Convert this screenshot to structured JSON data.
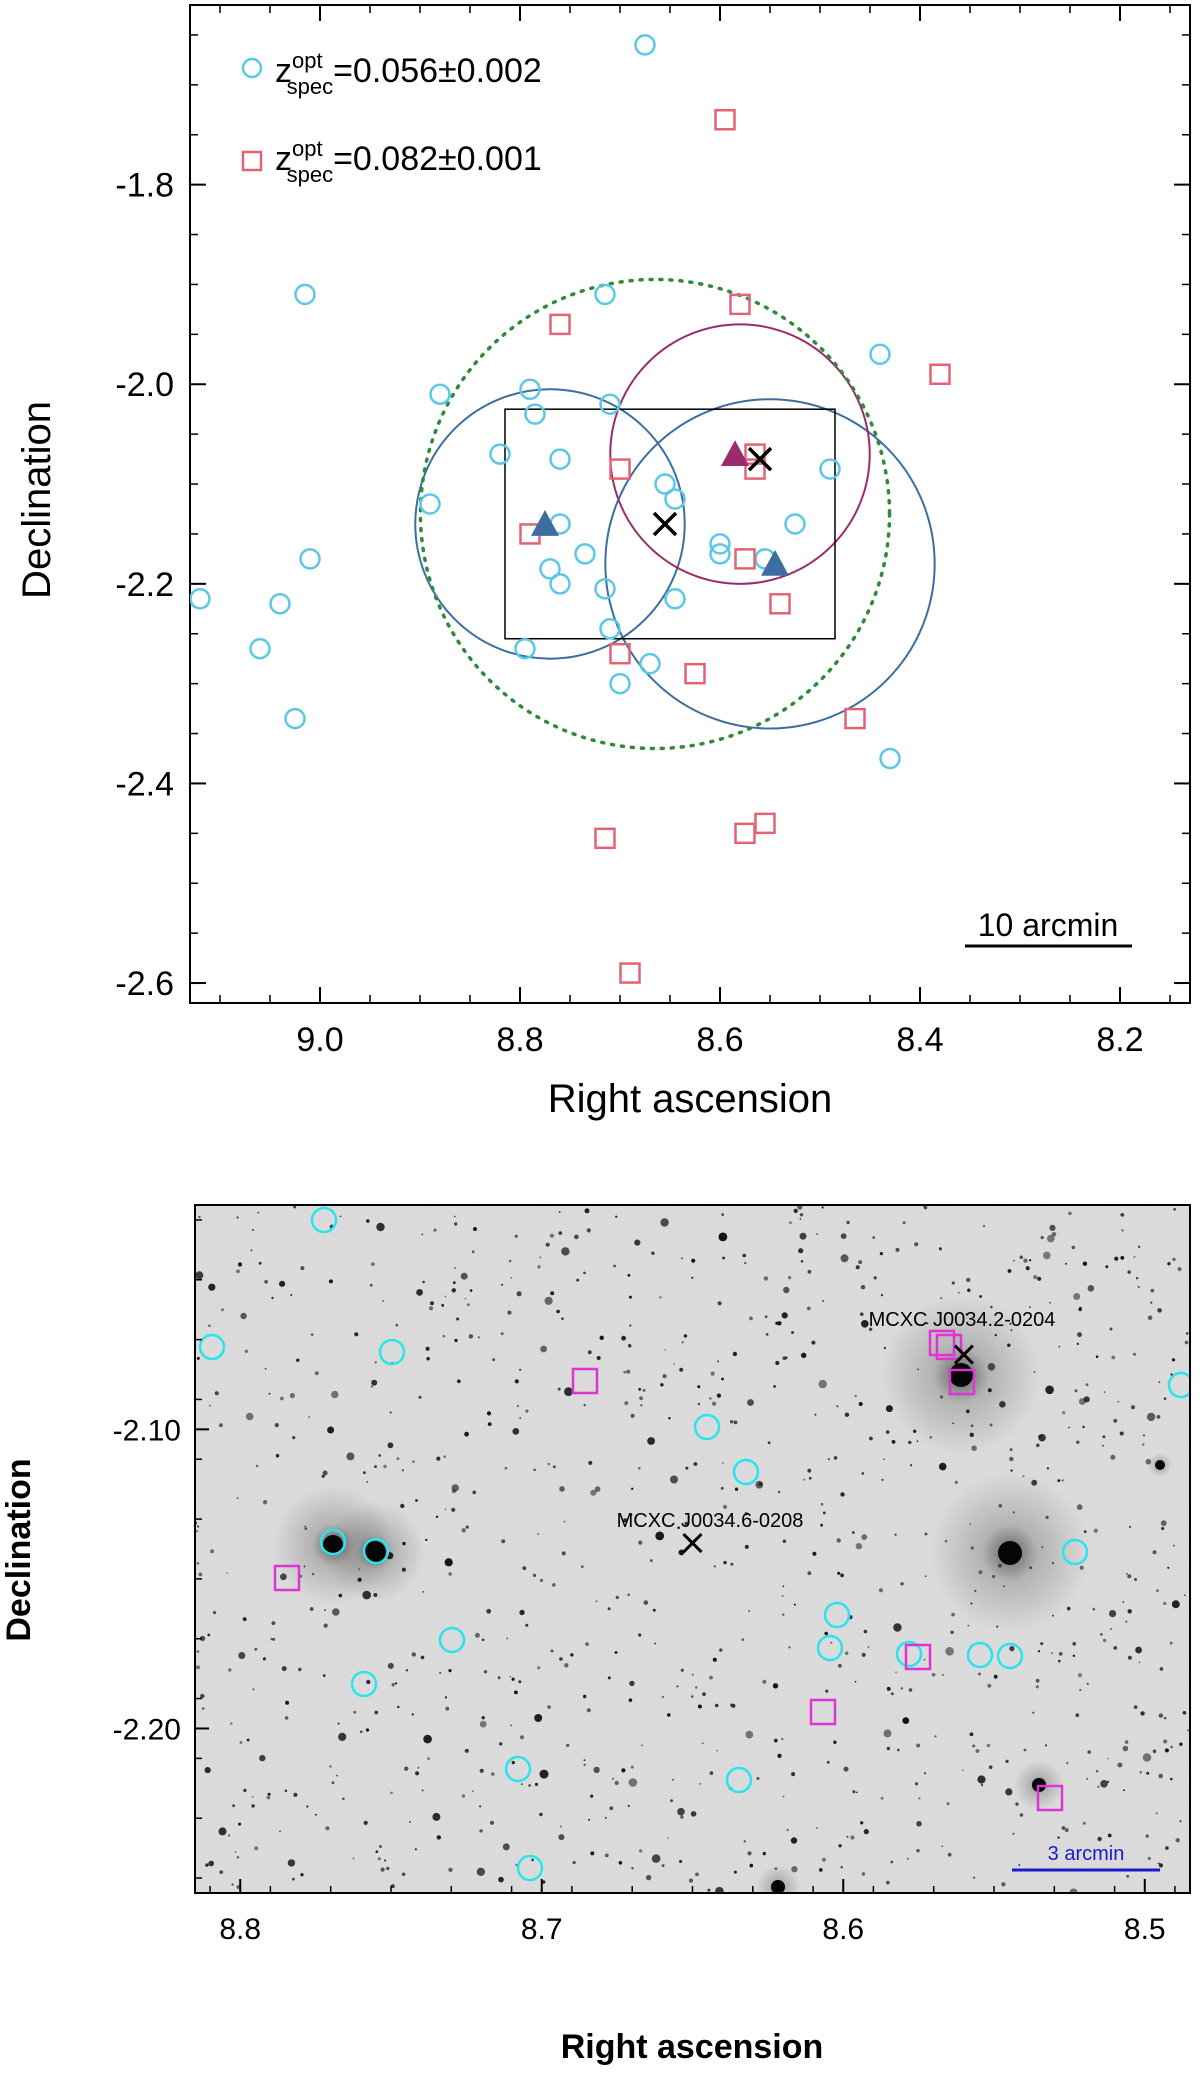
{
  "chart_data": [
    {
      "type": "scatter",
      "panel": "top",
      "xlabel": "Right ascension",
      "ylabel": "Declination",
      "xlim": [
        9.13,
        8.13
      ],
      "ylim": [
        -2.62,
        -1.62
      ],
      "xticks": [
        9.0,
        8.8,
        8.6,
        8.4,
        8.2
      ],
      "xtick_labels": [
        "9.0",
        "8.8",
        "8.6",
        "8.4",
        "8.2"
      ],
      "yticks": [
        -1.8,
        -2.0,
        -2.2,
        -2.4,
        -2.6
      ],
      "ytick_labels": [
        "-1.8",
        "-2.0",
        "-2.2",
        "-2.4",
        "-2.6"
      ],
      "scale_bar_label": "10 arcmin",
      "legend": [
        {
          "symbol": "circle",
          "color": "#5bc8e6",
          "sup": "opt",
          "sub": "spec",
          "value": "=0.056±0.002"
        },
        {
          "symbol": "square",
          "color": "#e26474",
          "sup": "opt",
          "sub": "spec",
          "value": "=0.082±0.001"
        }
      ],
      "z_label": "z",
      "series": [
        {
          "name": "z=0.056±0.002",
          "marker": "circle",
          "color": "#5bc8e6",
          "points": [
            [
              8.675,
              -1.66
            ],
            [
              9.015,
              -1.91
            ],
            [
              8.715,
              -1.91
            ],
            [
              8.44,
              -1.97
            ],
            [
              8.88,
              -2.01
            ],
            [
              8.79,
              -2.005
            ],
            [
              8.71,
              -2.02
            ],
            [
              8.785,
              -2.03
            ],
            [
              8.82,
              -2.07
            ],
            [
              8.76,
              -2.075
            ],
            [
              8.49,
              -2.085
            ],
            [
              8.655,
              -2.1
            ],
            [
              8.645,
              -2.115
            ],
            [
              8.89,
              -2.12
            ],
            [
              8.76,
              -2.14
            ],
            [
              8.525,
              -2.14
            ],
            [
              8.6,
              -2.16
            ],
            [
              8.6,
              -2.17
            ],
            [
              8.555,
              -2.175
            ],
            [
              8.735,
              -2.17
            ],
            [
              8.715,
              -2.205
            ],
            [
              8.77,
              -2.185
            ],
            [
              8.645,
              -2.215
            ],
            [
              8.76,
              -2.2
            ],
            [
              9.01,
              -2.175
            ],
            [
              9.04,
              -2.22
            ],
            [
              9.12,
              -2.215
            ],
            [
              9.06,
              -2.265
            ],
            [
              8.795,
              -2.265
            ],
            [
              8.71,
              -2.245
            ],
            [
              8.67,
              -2.28
            ],
            [
              8.7,
              -2.3
            ],
            [
              9.025,
              -2.335
            ],
            [
              8.43,
              -2.375
            ]
          ]
        },
        {
          "name": "z=0.082±0.001",
          "marker": "square",
          "color": "#e26474",
          "points": [
            [
              8.595,
              -1.735
            ],
            [
              8.76,
              -1.94
            ],
            [
              8.58,
              -1.92
            ],
            [
              8.38,
              -1.99
            ],
            [
              8.7,
              -2.085
            ],
            [
              8.565,
              -2.07
            ],
            [
              8.565,
              -2.085
            ],
            [
              8.79,
              -2.15
            ],
            [
              8.575,
              -2.175
            ],
            [
              8.54,
              -2.22
            ],
            [
              8.7,
              -2.27
            ],
            [
              8.625,
              -2.29
            ],
            [
              8.465,
              -2.335
            ],
            [
              8.715,
              -2.455
            ],
            [
              8.575,
              -2.45
            ],
            [
              8.555,
              -2.44
            ],
            [
              8.69,
              -2.59
            ]
          ]
        }
      ],
      "crosses": [
        [
          8.56,
          -2.075
        ],
        [
          8.655,
          -2.14
        ]
      ],
      "triangles": [
        {
          "color": "#3c6ea0",
          "ra": 8.775,
          "dec": -2.14
        },
        {
          "color": "#3c6ea0",
          "ra": 8.545,
          "dec": -2.18
        },
        {
          "color": "#9c2b6e",
          "ra": 8.585,
          "dec": -2.07
        }
      ],
      "circles_region": [
        {
          "color": "#3c6ea0",
          "style": "solid",
          "ra": 8.77,
          "dec": -2.14,
          "radius_deg": 0.135
        },
        {
          "color": "#3c6ea0",
          "style": "solid",
          "ra": 8.55,
          "dec": -2.18,
          "radius_deg": 0.165
        },
        {
          "color": "#9c2b6e",
          "style": "solid",
          "ra": 8.58,
          "dec": -2.07,
          "radius_deg": 0.13
        },
        {
          "color": "#2f8a3a",
          "style": "dotted",
          "ra": 8.665,
          "dec": -2.13,
          "radius_deg": 0.235
        }
      ],
      "box_region": {
        "ra_min": 8.485,
        "ra_max": 8.815,
        "dec_min": -2.255,
        "dec_max": -2.025
      }
    },
    {
      "type": "scatter",
      "panel": "bottom",
      "xlabel": "Right ascension",
      "ylabel": "Declination",
      "xlim": [
        8.815,
        8.485
      ],
      "ylim": [
        -2.255,
        -2.025
      ],
      "xticks": [
        8.8,
        8.7,
        8.6,
        8.5
      ],
      "xtick_labels": [
        "8.8",
        "8.7",
        "8.6",
        "8.5"
      ],
      "yticks": [
        -2.1,
        -2.2
      ],
      "ytick_labels": [
        "-2.10",
        "-2.20"
      ],
      "scale_bar_label": "3 arcmin",
      "annotations": [
        {
          "label": "MCXC J0034.2-0204",
          "ra": 8.56,
          "dec": -2.075
        },
        {
          "label": "MCXC J0034.6-0208",
          "ra": 8.65,
          "dec": -2.138
        }
      ],
      "background": "optical grayscale image"
    }
  ]
}
